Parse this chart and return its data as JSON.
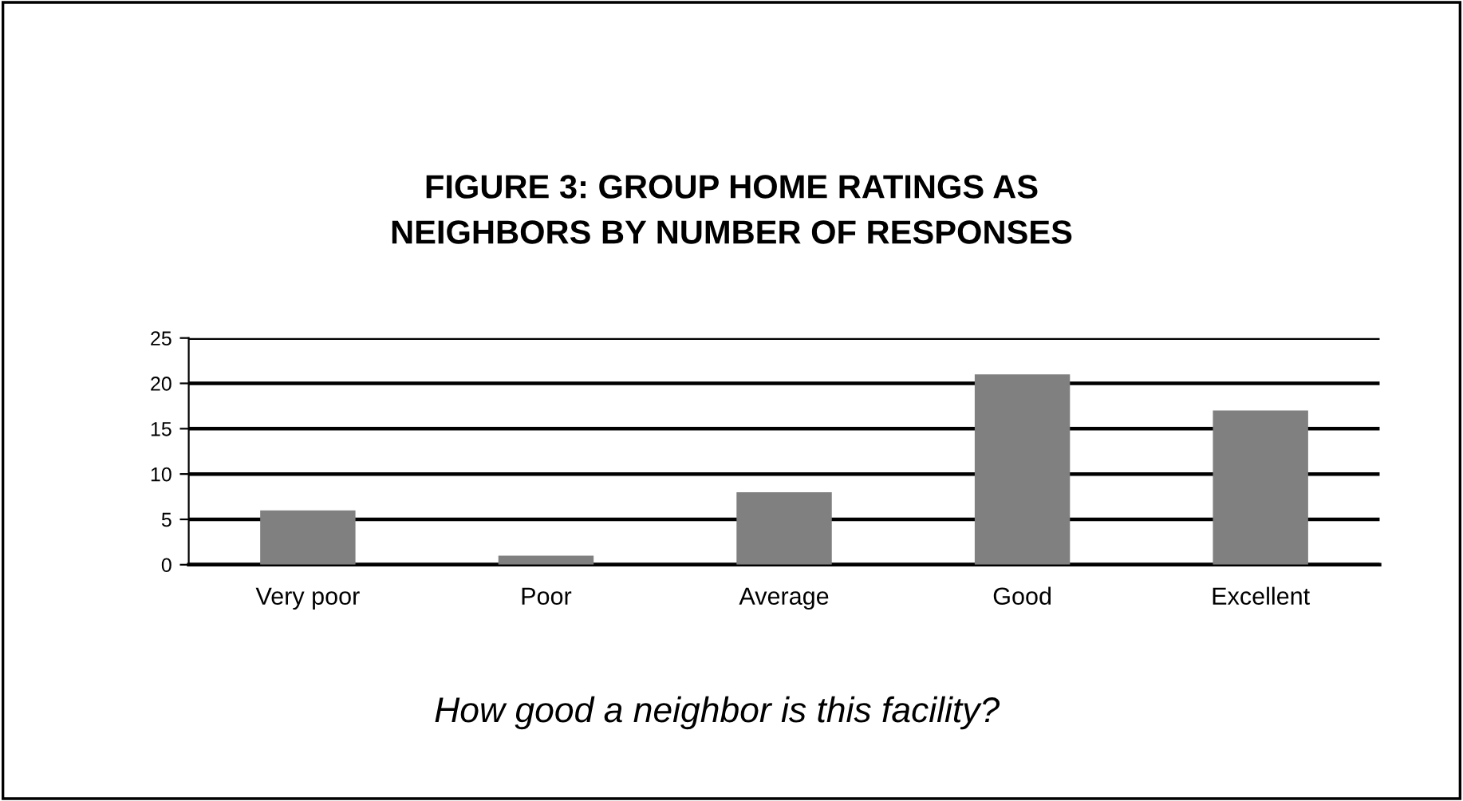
{
  "chart_data": {
    "type": "bar",
    "title": "FIGURE 3: GROUP HOME RATINGS AS\nNEIGHBORS BY NUMBER OF RESPONSES",
    "xlabel": "How good a neighbor is this facility?",
    "categories": [
      "Very poor",
      "Poor",
      "Average",
      "Good",
      "Excellent"
    ],
    "values": [
      6,
      1,
      8,
      21,
      17
    ],
    "color": "#808080",
    "ylim": [
      0,
      25
    ],
    "yticks": [
      0,
      5,
      10,
      15,
      20,
      25
    ],
    "grid": "y"
  }
}
